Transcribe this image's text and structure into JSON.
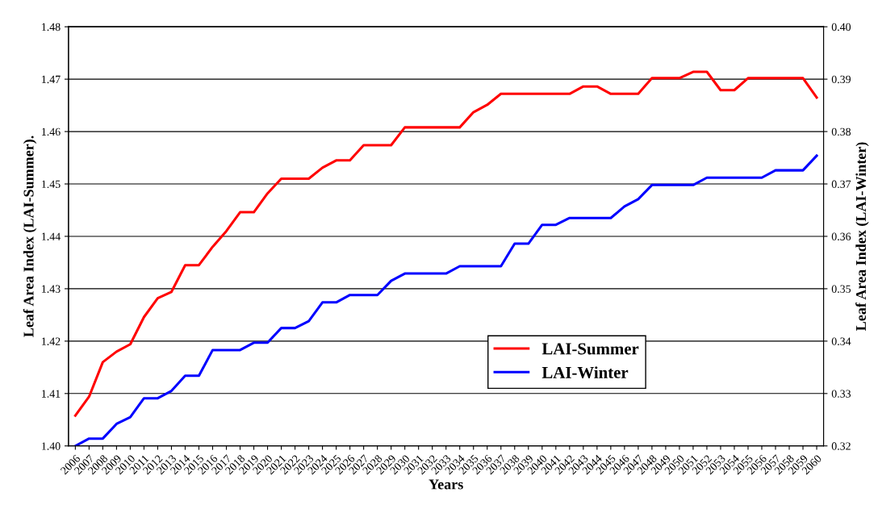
{
  "chart_data": {
    "type": "line",
    "xlabel": "Years",
    "ylabel": "Leaf Area Index (LAI-Summer).",
    "y2label": "Leaf Area Index (LAI-Winter)",
    "categories": [
      "2006",
      "2007",
      "2008",
      "2009",
      "2010",
      "2011",
      "2012",
      "2013",
      "2014",
      "2015",
      "2016",
      "2017",
      "2018",
      "2019",
      "2020",
      "2021",
      "2022",
      "2023",
      "2024",
      "2025",
      "2026",
      "2027",
      "2028",
      "2029",
      "2030",
      "2031",
      "2032",
      "2033",
      "2034",
      "2035",
      "2036",
      "2037",
      "2038",
      "2039",
      "2040",
      "2041",
      "2042",
      "2043",
      "2044",
      "2045",
      "2046",
      "2047",
      "2048",
      "2049",
      "2050",
      "2051",
      "2052",
      "2053",
      "2054",
      "2055",
      "2056",
      "2057",
      "2058",
      "2059",
      "2060"
    ],
    "series": [
      {
        "name": "LAI-Summer",
        "color": "#ff0000",
        "values": [
          1.4058,
          1.4094,
          1.416,
          1.418,
          1.4194,
          1.4246,
          1.4282,
          1.4294,
          1.4345,
          1.4345,
          1.438,
          1.441,
          1.4446,
          1.4446,
          1.4482,
          1.451,
          1.451,
          1.451,
          1.4531,
          1.4545,
          1.4545,
          1.4574,
          1.4574,
          1.4574,
          1.4608,
          1.4608,
          1.4608,
          1.4608,
          1.4608,
          1.4637,
          1.4651,
          1.4672,
          1.4672,
          1.4672,
          1.4672,
          1.4672,
          1.4672,
          1.4686,
          1.4686,
          1.4672,
          1.4672,
          1.4672,
          1.4702,
          1.4702,
          1.4702,
          1.4714,
          1.4714,
          1.4679,
          1.4679,
          1.4702,
          1.4702,
          1.4702,
          1.4702,
          1.4702,
          1.4665
        ]
      },
      {
        "name": "LAI-Winter",
        "color": "#0000ff",
        "axis": "y2",
        "values": [
          0.32,
          0.3214,
          0.3214,
          0.3242,
          0.3255,
          0.3291,
          0.3291,
          0.3305,
          0.3334,
          0.3334,
          0.3383,
          0.3383,
          0.3383,
          0.3397,
          0.3397,
          0.3425,
          0.3425,
          0.3438,
          0.3474,
          0.3474,
          0.3488,
          0.3488,
          0.3488,
          0.3515,
          0.3529,
          0.3529,
          0.3529,
          0.3529,
          0.3543,
          0.3543,
          0.3543,
          0.3543,
          0.3586,
          0.3586,
          0.3622,
          0.3622,
          0.3635,
          0.3635,
          0.3635,
          0.3635,
          0.3657,
          0.3671,
          0.3698,
          0.3698,
          0.3698,
          0.3698,
          0.3712,
          0.3712,
          0.3712,
          0.3712,
          0.3712,
          0.3726,
          0.3726,
          0.3726,
          0.3754
        ]
      }
    ],
    "ylim": [
      1.4,
      1.48
    ],
    "yticks": [
      {
        "value": 1.4,
        "label": "1.40"
      },
      {
        "value": 1.41,
        "label": "1.41"
      },
      {
        "value": 1.42,
        "label": "1.42"
      },
      {
        "value": 1.43,
        "label": "1.43"
      },
      {
        "value": 1.44,
        "label": "1.44"
      },
      {
        "value": 1.45,
        "label": "1.45"
      },
      {
        "value": 1.46,
        "label": "1.46"
      },
      {
        "value": 1.47,
        "label": "1.47"
      },
      {
        "value": 1.48,
        "label": "1.48"
      }
    ],
    "y2lim": [
      0.32,
      0.4
    ],
    "y2ticks": [
      {
        "value": 0.32,
        "label": "0.32"
      },
      {
        "value": 0.33,
        "label": "0.33"
      },
      {
        "value": 0.34,
        "label": "0.34"
      },
      {
        "value": 0.35,
        "label": "0.35"
      },
      {
        "value": 0.36,
        "label": "0.36"
      },
      {
        "value": 0.37,
        "label": "0.37"
      },
      {
        "value": 0.38,
        "label": "0.38"
      },
      {
        "value": 0.39,
        "label": "0.39"
      },
      {
        "value": 0.4,
        "label": "0.40"
      }
    ],
    "grid": "y",
    "legend": "center right"
  }
}
